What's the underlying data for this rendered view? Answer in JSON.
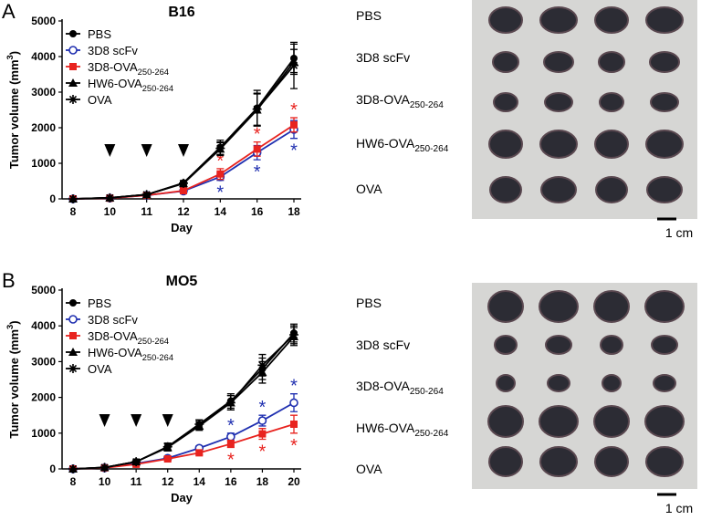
{
  "chart_data": [
    {
      "type": "line",
      "panel": "A",
      "title": "B16",
      "xlabel": "Day",
      "ylabel": "Tumor volume (mm3)",
      "categories": [
        "8",
        "10",
        "11",
        "12",
        "14",
        "16",
        "18"
      ],
      "ylim": [
        0,
        5000
      ],
      "yticks": [
        0,
        1000,
        2000,
        3000,
        4000,
        5000
      ],
      "grid": false,
      "legend": "upper left",
      "injection_days": [
        "10",
        "11",
        "12"
      ],
      "series": [
        {
          "name": "PBS",
          "color": "#000000",
          "marker": "circle",
          "values": [
            0,
            30,
            120,
            450,
            1450,
            2550,
            3950
          ],
          "errors": [
            0,
            10,
            20,
            60,
            200,
            500,
            400
          ]
        },
        {
          "name": "3D8 scFv",
          "color": "#1f2fb0",
          "marker": "open-circle",
          "values": [
            0,
            20,
            100,
            220,
            620,
            1300,
            1950
          ],
          "errors": [
            0,
            8,
            15,
            40,
            100,
            200,
            250
          ],
          "significance": [
            null,
            null,
            null,
            null,
            "*",
            "*",
            "*"
          ],
          "significance_side": "below"
        },
        {
          "name": "3D8-OVA250-264",
          "color": "#e8231f",
          "marker": "square",
          "values": [
            0,
            20,
            100,
            230,
            700,
            1400,
            2080
          ],
          "errors": [
            0,
            8,
            15,
            40,
            150,
            200,
            200
          ],
          "significance": [
            null,
            null,
            null,
            null,
            "*",
            "*",
            "*"
          ],
          "significance_side": "above"
        },
        {
          "name": "HW6-OVA250-264",
          "color": "#000000",
          "marker": "triangle",
          "values": [
            0,
            30,
            120,
            430,
            1400,
            2500,
            3850
          ],
          "errors": [
            0,
            10,
            20,
            60,
            180,
            450,
            350
          ]
        },
        {
          "name": "OVA",
          "color": "#000000",
          "marker": "star",
          "values": [
            0,
            30,
            120,
            440,
            1420,
            2520,
            3750
          ],
          "errors": [
            0,
            10,
            20,
            60,
            180,
            450,
            650
          ]
        }
      ]
    },
    {
      "type": "line",
      "panel": "B",
      "title": "MO5",
      "xlabel": "Day",
      "ylabel": "Tumor volume (mm3)",
      "categories": [
        "8",
        "10",
        "11",
        "12",
        "14",
        "16",
        "18",
        "20"
      ],
      "ylim": [
        0,
        5000
      ],
      "yticks": [
        0,
        1000,
        2000,
        3000,
        4000,
        5000
      ],
      "grid": false,
      "legend": "upper left",
      "injection_days": [
        "10",
        "11",
        "12"
      ],
      "series": [
        {
          "name": "PBS",
          "color": "#000000",
          "marker": "circle",
          "values": [
            0,
            40,
            200,
            620,
            1250,
            1900,
            2800,
            3800
          ],
          "errors": [
            0,
            10,
            30,
            100,
            120,
            200,
            300,
            250
          ]
        },
        {
          "name": "3D8 scFv",
          "color": "#1f2fb0",
          "marker": "open-circle",
          "values": [
            0,
            30,
            150,
            300,
            580,
            900,
            1350,
            1850
          ],
          "errors": [
            0,
            8,
            20,
            40,
            60,
            100,
            150,
            250
          ],
          "significance": [
            null,
            null,
            null,
            null,
            null,
            "*",
            "*",
            "*"
          ],
          "significance_side": "above"
        },
        {
          "name": "3D8-OVA250-264",
          "color": "#e8231f",
          "marker": "square",
          "values": [
            0,
            30,
            130,
            280,
            450,
            700,
            980,
            1250
          ],
          "errors": [
            0,
            8,
            20,
            40,
            60,
            100,
            150,
            250
          ],
          "significance": [
            null,
            null,
            null,
            null,
            null,
            "*",
            "*",
            "*"
          ],
          "significance_side": "below"
        },
        {
          "name": "HW6-OVA250-264",
          "color": "#000000",
          "marker": "triangle",
          "values": [
            0,
            40,
            200,
            600,
            1200,
            1850,
            2700,
            3700
          ],
          "errors": [
            0,
            10,
            30,
            100,
            120,
            200,
            300,
            250
          ]
        },
        {
          "name": "OVA",
          "color": "#000000",
          "marker": "star",
          "values": [
            0,
            40,
            200,
            620,
            1250,
            1850,
            2900,
            3750
          ],
          "errors": [
            0,
            10,
            30,
            100,
            120,
            200,
            300,
            250
          ]
        }
      ]
    }
  ],
  "photos": [
    {
      "rows": [
        "PBS",
        "3D8 scFv",
        "3D8-OVA250-264",
        "HW6-OVA250-264",
        "OVA"
      ],
      "scale": "1 cm"
    },
    {
      "rows": [
        "PBS",
        "3D8 scFv",
        "3D8-OVA250-264",
        "HW6-OVA250-264",
        "OVA"
      ],
      "scale": "1 cm"
    }
  ]
}
